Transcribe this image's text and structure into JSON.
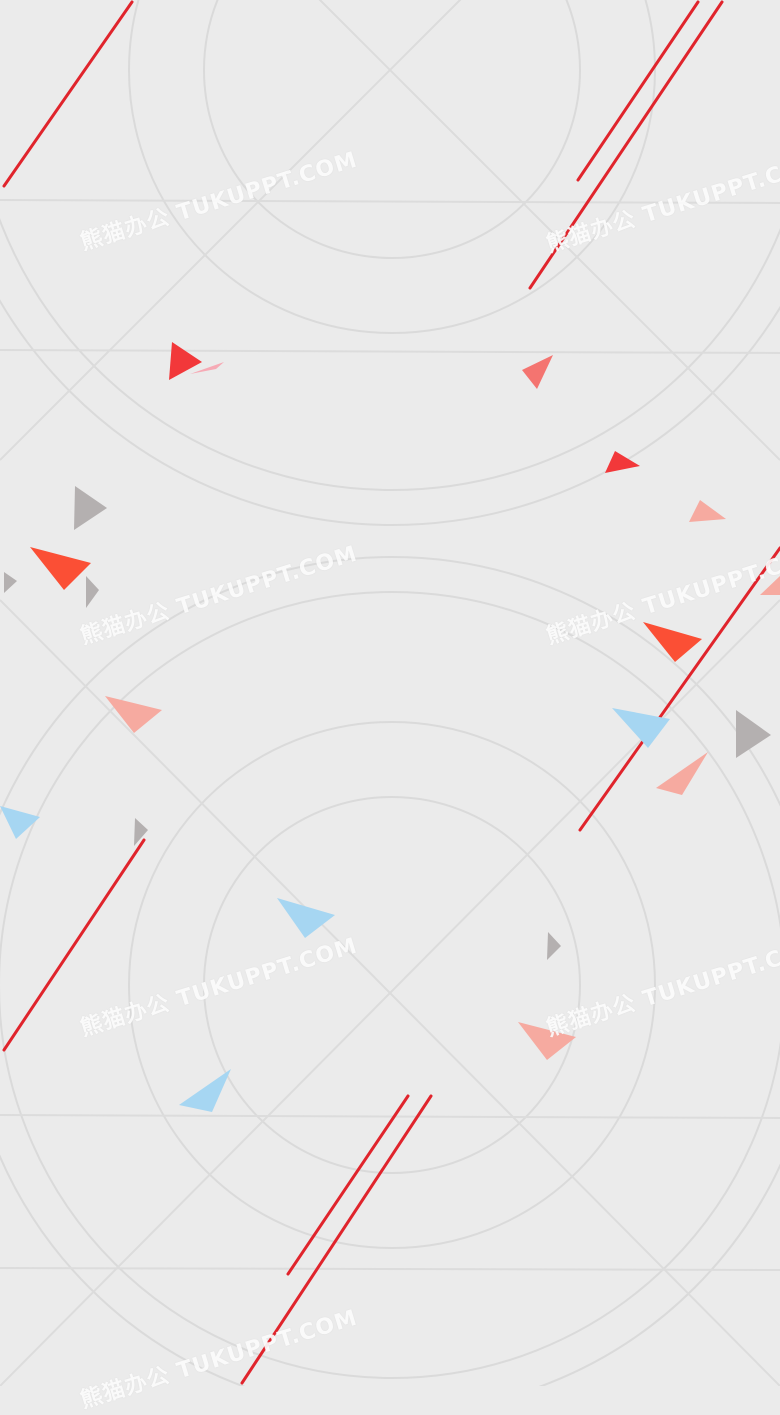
{
  "watermark": {
    "text": "熊猫办公 TUKUPPT.COM"
  },
  "colors": {
    "background": "#ebebeb",
    "guide_lines": "#dcdcdc",
    "accent_red": "#e0242c",
    "tri_red": "#f2383a",
    "tri_orange": "#fb4f35",
    "tri_pink": "#f6aaa0",
    "tri_coral": "#f47470",
    "tri_gray": "#b4b0b0",
    "tri_blue": "#a6d6f2"
  }
}
